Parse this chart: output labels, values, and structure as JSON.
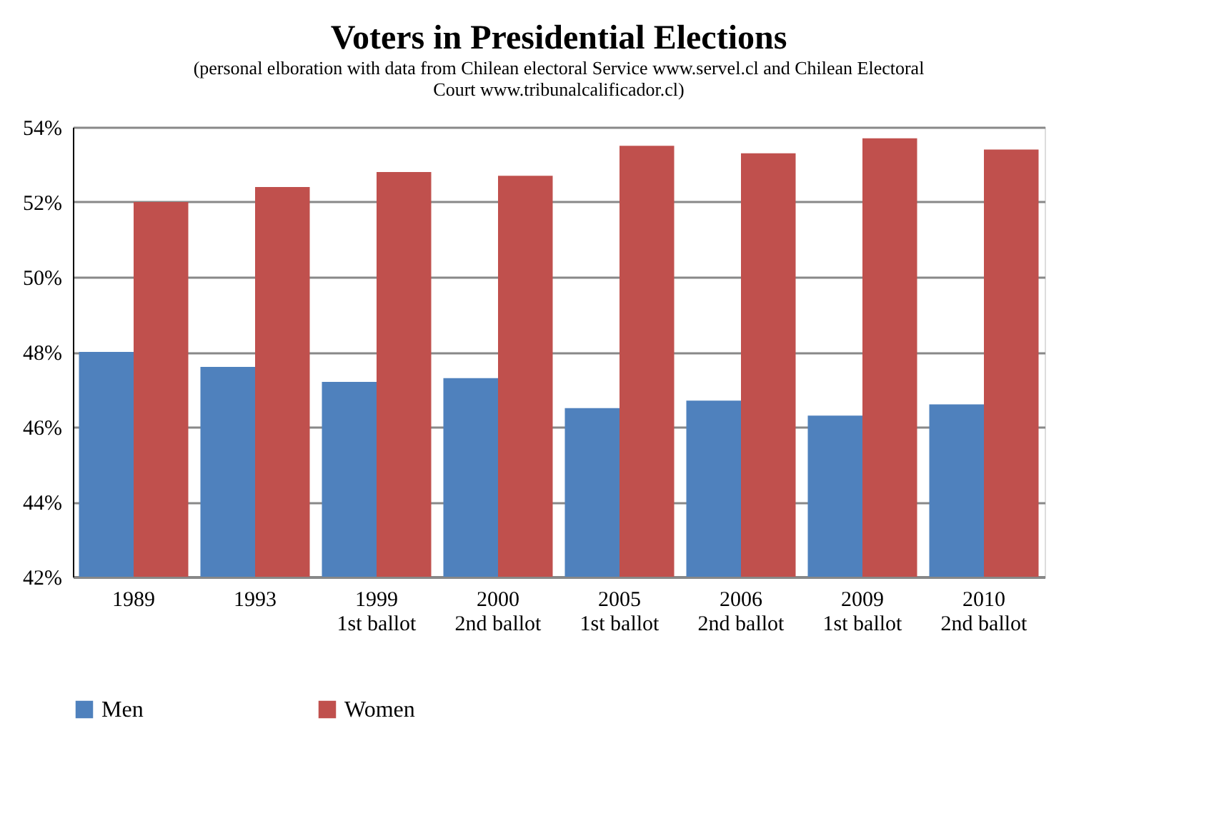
{
  "chart_data": {
    "type": "bar",
    "title": "Voters in Presidential Elections",
    "subtitle": "(personal elboration with data from Chilean electoral Service www.servel.cl and Chilean Electoral Court  www.tribunalcalificador.cl)",
    "categories": [
      "1989",
      "1993",
      "1999 1st ballot",
      "2000 2nd ballot",
      "2005 1st ballot",
      "2006 2nd ballot",
      "2009 1st ballot",
      "2010 2nd ballot"
    ],
    "series": [
      {
        "name": "Men",
        "color": "#4f81bd",
        "values": [
          48.0,
          47.6,
          47.2,
          47.3,
          46.5,
          46.7,
          46.3,
          46.6
        ]
      },
      {
        "name": "Women",
        "color": "#c0504d",
        "values": [
          52.0,
          52.4,
          52.8,
          52.7,
          53.5,
          53.3,
          53.7,
          53.4
        ]
      }
    ],
    "ylim": [
      42,
      54
    ],
    "yticks": [
      {
        "value": 42,
        "label": "42%"
      },
      {
        "value": 44,
        "label": "44%"
      },
      {
        "value": 46,
        "label": "46%"
      },
      {
        "value": 48,
        "label": "48%"
      },
      {
        "value": 50,
        "label": "50%"
      },
      {
        "value": 52,
        "label": "52%"
      },
      {
        "value": 54,
        "label": "54%"
      }
    ],
    "grid": "y",
    "legend": "bottom"
  }
}
